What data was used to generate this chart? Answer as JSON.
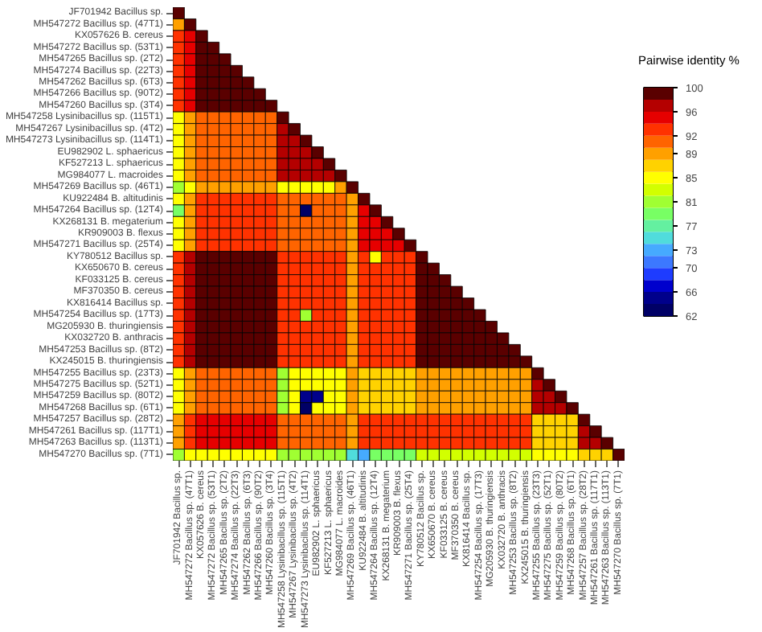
{
  "chart_data": {
    "type": "heatmap",
    "clabel": "Pairwise identity %",
    "categories": [
      "JF701942 Bacillus sp.",
      "MH547272 Bacillus sp. (47T1)",
      "KX057626 B. cereus",
      "MH547272 Bacillus sp. (53T1)",
      "MH547265 Bacillus sp. (2T2)",
      "MH547274 Bacillus sp. (22T3)",
      "MH547262 Bacillus sp. (6T3)",
      "MH547266 Bacillus sp. (90T2)",
      "MH547260 Bacillus sp. (3T4)",
      "MH547258 Lysinibacillus sp. (115T1)",
      "MH547267 Lysinibacillus sp. (4T2)",
      "MH547273 Lysinibacillus sp. (114T1)",
      "EU982902 L. sphaericus",
      "KF527213 L. sphaericus",
      "MG984077 L. macroides",
      "MH547269 Bacillus sp. (46T1)",
      "KU922484 B. altitudinis",
      "MH547264 Bacillus sp. (12T4)",
      "KX268131 B. megaterium",
      "KR909003 B. flexus",
      "MH547271 Bacillus sp. (25T4)",
      "KY780512 Bacillus sp.",
      "KX650670 B. cereus",
      "KF033125 B. cereus",
      "MF370350 B. cereus",
      "KX816414 Bacillus sp.",
      "MH547254 Bacillus sp. (17T3)",
      "MG205930 B. thuringiensis",
      "KX032720 B. anthracis",
      "MH547253 Bacillus sp. (8T2)",
      "KX245015 B. thuringiensis",
      "MH547255 Bacillus sp. (23T3)",
      "MH547275 Bacillus sp. (52T1)",
      "MH547259 Bacillus sp. (80T2)",
      "MH547268 Bacillus sp. (6T1)",
      "MH547257 Bacillus sp. (28T2)",
      "MH547261 Bacillus sp. (117T1)",
      "MH547263 Bacillus sp. (113T1)",
      "MH547270 Bacillus sp. (7T1)"
    ],
    "y_categories": [
      "JF701942 Bacillus sp.",
      "MH547272 Bacillus sp. (47T1)",
      "KX057626 B. cereus",
      "MH547272 Bacillus sp. (53T1)",
      "MH547265 Bacillus sp. (2T2)",
      "MH547274 Bacillus sp. (22T3)",
      "MH547262 Bacillus sp. (6T3)",
      "MH547266 Bacillus sp. (90T2)",
      "MH547260 Bacillus sp. (3T4)",
      "MH547258 Lysinibacillus sp. (115T1)",
      "MH547267 Lysinibacillus sp. (4T2)",
      "MH547273 Lysinibacillus sp. (114T1)",
      "EU982902 L. sphaericus",
      "KF527213 L. sphaericus",
      "MG984077 L. macroides",
      "MH547269 Bacillus sp. (46T1)",
      "KU922484 B. altitudinis",
      "MH547264 Bacillus sp. (12T4)",
      "KX268131 B. megaterium",
      "KR909003 B. flexus",
      "MH547271 Bacillus sp. (25T4)",
      "KY780512 Bacillus sp.",
      "KX650670 B. cereus",
      "KF033125 B. cereus",
      "MF370350 B. cereus",
      "KX816414 Bacillus sp.",
      "MH547254 Bacillus sp. (17T3)",
      "MG205930 B. thuringiensis",
      "KX032720 B. anthracis",
      "MH547253 Bacillus sp. (8T2)",
      "KX245015 B. thuringiensis",
      "MH547255 Bacillus sp. (23T3)",
      "MH547275 Bacillus sp. (52T1)",
      "MH547259 Bacillus sp. (80T2)",
      "MH547268 Bacillus sp. (6T1)",
      "MH547257 Bacillus sp. (28T2)",
      "MH547261 Bacillus sp. (117T1)",
      "MH547263 Bacillus sp. (113T1)",
      "MH547270 Bacillus sp. (7T1)"
    ],
    "clim": [
      62,
      100
    ],
    "cticks": [
      62,
      66,
      70,
      73,
      77,
      81,
      85,
      89,
      92,
      96,
      100
    ],
    "colors": [
      "#000066",
      "#00008b",
      "#0000cd",
      "#1e3cff",
      "#3c78ff",
      "#46aaff",
      "#50dcdc",
      "#64f0a0",
      "#78ff64",
      "#a0ff32",
      "#d2ff00",
      "#ffff00",
      "#ffd200",
      "#ffa000",
      "#ff6400",
      "#ff3200",
      "#e60000",
      "#b40000",
      "#5a0000"
    ],
    "cells": [
      [
        100,
        null,
        null,
        null,
        null,
        null,
        null,
        null,
        null,
        null,
        null,
        null,
        null,
        null,
        null,
        null,
        null,
        null,
        null,
        null,
        null,
        null,
        null,
        null,
        null,
        null,
        null,
        null,
        null,
        null,
        null,
        null,
        null,
        null,
        null,
        null,
        null,
        null,
        null
      ],
      [
        89,
        100,
        null,
        null,
        null,
        null,
        null,
        null,
        null,
        null,
        null,
        null,
        null,
        null,
        null,
        null,
        null,
        null,
        null,
        null,
        null,
        null,
        null,
        null,
        null,
        null,
        null,
        null,
        null,
        null,
        null,
        null,
        null,
        null,
        null,
        null,
        null,
        null,
        null
      ],
      [
        92,
        94,
        100,
        null,
        null,
        null,
        null,
        null,
        null,
        null,
        null,
        null,
        null,
        null,
        null,
        null,
        null,
        null,
        null,
        null,
        null,
        null,
        null,
        null,
        null,
        null,
        null,
        null,
        null,
        null,
        null,
        null,
        null,
        null,
        null,
        null,
        null,
        null,
        null
      ],
      [
        92,
        94,
        99,
        100,
        null,
        null,
        null,
        null,
        null,
        null,
        null,
        null,
        null,
        null,
        null,
        null,
        null,
        null,
        null,
        null,
        null,
        null,
        null,
        null,
        null,
        null,
        null,
        null,
        null,
        null,
        null,
        null,
        null,
        null,
        null,
        null,
        null,
        null,
        null
      ],
      [
        92,
        94,
        99,
        99,
        100,
        null,
        null,
        null,
        null,
        null,
        null,
        null,
        null,
        null,
        null,
        null,
        null,
        null,
        null,
        null,
        null,
        null,
        null,
        null,
        null,
        null,
        null,
        null,
        null,
        null,
        null,
        null,
        null,
        null,
        null,
        null,
        null,
        null,
        null
      ],
      [
        92,
        94,
        99,
        99,
        99,
        100,
        null,
        null,
        null,
        null,
        null,
        null,
        null,
        null,
        null,
        null,
        null,
        null,
        null,
        null,
        null,
        null,
        null,
        null,
        null,
        null,
        null,
        null,
        null,
        null,
        null,
        null,
        null,
        null,
        null,
        null,
        null,
        null,
        null
      ],
      [
        92,
        94,
        99,
        99,
        99,
        99,
        100,
        null,
        null,
        null,
        null,
        null,
        null,
        null,
        null,
        null,
        null,
        null,
        null,
        null,
        null,
        null,
        null,
        null,
        null,
        null,
        null,
        null,
        null,
        null,
        null,
        null,
        null,
        null,
        null,
        null,
        null,
        null,
        null
      ],
      [
        92,
        94,
        99,
        99,
        99,
        99,
        99,
        100,
        null,
        null,
        null,
        null,
        null,
        null,
        null,
        null,
        null,
        null,
        null,
        null,
        null,
        null,
        null,
        null,
        null,
        null,
        null,
        null,
        null,
        null,
        null,
        null,
        null,
        null,
        null,
        null,
        null,
        null,
        null
      ],
      [
        92,
        94,
        99,
        99,
        99,
        99,
        99,
        99,
        100,
        null,
        null,
        null,
        null,
        null,
        null,
        null,
        null,
        null,
        null,
        null,
        null,
        null,
        null,
        null,
        null,
        null,
        null,
        null,
        null,
        null,
        null,
        null,
        null,
        null,
        null,
        null,
        null,
        null,
        null
      ],
      [
        85,
        89,
        91,
        91,
        91,
        91,
        91,
        91,
        91,
        100,
        null,
        null,
        null,
        null,
        null,
        null,
        null,
        null,
        null,
        null,
        null,
        null,
        null,
        null,
        null,
        null,
        null,
        null,
        null,
        null,
        null,
        null,
        null,
        null,
        null,
        null,
        null,
        null,
        null
      ],
      [
        85,
        89,
        91,
        91,
        91,
        91,
        91,
        91,
        91,
        97,
        100,
        null,
        null,
        null,
        null,
        null,
        null,
        null,
        null,
        null,
        null,
        null,
        null,
        null,
        null,
        null,
        null,
        null,
        null,
        null,
        null,
        null,
        null,
        null,
        null,
        null,
        null,
        null,
        null
      ],
      [
        85,
        89,
        91,
        91,
        91,
        91,
        91,
        91,
        91,
        97,
        97,
        100,
        null,
        null,
        null,
        null,
        null,
        null,
        null,
        null,
        null,
        null,
        null,
        null,
        null,
        null,
        null,
        null,
        null,
        null,
        null,
        null,
        null,
        null,
        null,
        null,
        null,
        null,
        null
      ],
      [
        85,
        89,
        91,
        91,
        91,
        91,
        91,
        91,
        91,
        97,
        97,
        97,
        100,
        null,
        null,
        null,
        null,
        null,
        null,
        null,
        null,
        null,
        null,
        null,
        null,
        null,
        null,
        null,
        null,
        null,
        null,
        null,
        null,
        null,
        null,
        null,
        null,
        null,
        null
      ],
      [
        85,
        89,
        91,
        91,
        91,
        91,
        91,
        91,
        91,
        97,
        97,
        97,
        97,
        100,
        null,
        null,
        null,
        null,
        null,
        null,
        null,
        null,
        null,
        null,
        null,
        null,
        null,
        null,
        null,
        null,
        null,
        null,
        null,
        null,
        null,
        null,
        null,
        null,
        null
      ],
      [
        85,
        89,
        91,
        91,
        91,
        91,
        91,
        91,
        91,
        97,
        97,
        97,
        97,
        97,
        100,
        null,
        null,
        null,
        null,
        null,
        null,
        null,
        null,
        null,
        null,
        null,
        null,
        null,
        null,
        null,
        null,
        null,
        null,
        null,
        null,
        null,
        null,
        null,
        null
      ],
      [
        81,
        85,
        89,
        89,
        89,
        89,
        89,
        89,
        89,
        85,
        85,
        85,
        85,
        85,
        89,
        100,
        null,
        null,
        null,
        null,
        null,
        null,
        null,
        null,
        null,
        null,
        null,
        null,
        null,
        null,
        null,
        null,
        null,
        null,
        null,
        null,
        null,
        null,
        null
      ],
      [
        84,
        89,
        92,
        92,
        92,
        92,
        92,
        92,
        92,
        90,
        90,
        90,
        90,
        90,
        90,
        89,
        100,
        null,
        null,
        null,
        null,
        null,
        null,
        null,
        null,
        null,
        null,
        null,
        null,
        null,
        null,
        null,
        null,
        null,
        null,
        null,
        null,
        null,
        null
      ],
      [
        79,
        89,
        92,
        92,
        92,
        92,
        92,
        92,
        92,
        90,
        90,
        62,
        90,
        90,
        90,
        89,
        95,
        100,
        null,
        null,
        null,
        null,
        null,
        null,
        null,
        null,
        null,
        null,
        null,
        null,
        null,
        null,
        null,
        null,
        null,
        null,
        null,
        null,
        null
      ],
      [
        84,
        89,
        92,
        92,
        92,
        92,
        92,
        92,
        92,
        90,
        90,
        90,
        90,
        90,
        90,
        89,
        95,
        95,
        100,
        null,
        null,
        null,
        null,
        null,
        null,
        null,
        null,
        null,
        null,
        null,
        null,
        null,
        null,
        null,
        null,
        null,
        null,
        null,
        null
      ],
      [
        84,
        89,
        92,
        92,
        92,
        92,
        92,
        92,
        92,
        90,
        90,
        90,
        90,
        90,
        90,
        89,
        95,
        95,
        95,
        100,
        null,
        null,
        null,
        null,
        null,
        null,
        null,
        null,
        null,
        null,
        null,
        null,
        null,
        null,
        null,
        null,
        null,
        null,
        null
      ],
      [
        84,
        89,
        92,
        92,
        92,
        92,
        92,
        92,
        92,
        90,
        90,
        90,
        90,
        90,
        90,
        89,
        95,
        95,
        95,
        95,
        100,
        null,
        null,
        null,
        null,
        null,
        null,
        null,
        null,
        null,
        null,
        null,
        null,
        null,
        null,
        null,
        null,
        null,
        null
      ],
      [
        92,
        96,
        98,
        98,
        98,
        98,
        98,
        98,
        98,
        92,
        92,
        92,
        92,
        92,
        92,
        89,
        92,
        85,
        92,
        92,
        92,
        100,
        null,
        null,
        null,
        null,
        null,
        null,
        null,
        null,
        null,
        null,
        null,
        null,
        null,
        null,
        null,
        null,
        null
      ],
      [
        92,
        96,
        98,
        98,
        98,
        98,
        98,
        98,
        98,
        92,
        92,
        92,
        92,
        92,
        92,
        89,
        92,
        92,
        92,
        92,
        92,
        99,
        100,
        null,
        null,
        null,
        null,
        null,
        null,
        null,
        null,
        null,
        null,
        null,
        null,
        null,
        null,
        null,
        null
      ],
      [
        92,
        96,
        98,
        98,
        98,
        98,
        98,
        98,
        98,
        92,
        92,
        92,
        92,
        92,
        92,
        89,
        92,
        92,
        92,
        92,
        92,
        99,
        99,
        100,
        null,
        null,
        null,
        null,
        null,
        null,
        null,
        null,
        null,
        null,
        null,
        null,
        null,
        null,
        null
      ],
      [
        92,
        96,
        98,
        98,
        98,
        98,
        98,
        98,
        98,
        92,
        92,
        92,
        92,
        92,
        92,
        89,
        92,
        92,
        92,
        92,
        92,
        99,
        99,
        99,
        100,
        null,
        null,
        null,
        null,
        null,
        null,
        null,
        null,
        null,
        null,
        null,
        null,
        null,
        null
      ],
      [
        92,
        96,
        98,
        98,
        98,
        98,
        98,
        98,
        98,
        92,
        92,
        92,
        92,
        92,
        92,
        89,
        92,
        92,
        92,
        92,
        92,
        99,
        99,
        99,
        99,
        100,
        null,
        null,
        null,
        null,
        null,
        null,
        null,
        null,
        null,
        null,
        null,
        null,
        null
      ],
      [
        92,
        96,
        98,
        98,
        98,
        98,
        98,
        98,
        98,
        92,
        92,
        81,
        92,
        92,
        92,
        89,
        92,
        92,
        92,
        92,
        92,
        99,
        99,
        99,
        99,
        99,
        100,
        null,
        null,
        null,
        null,
        null,
        null,
        null,
        null,
        null,
        null,
        null,
        null
      ],
      [
        92,
        96,
        98,
        98,
        98,
        98,
        98,
        98,
        98,
        92,
        92,
        92,
        92,
        92,
        92,
        89,
        92,
        92,
        92,
        92,
        92,
        99,
        99,
        99,
        99,
        99,
        99,
        100,
        null,
        null,
        null,
        null,
        null,
        null,
        null,
        null,
        null,
        null,
        null
      ],
      [
        92,
        96,
        98,
        98,
        98,
        98,
        98,
        98,
        98,
        92,
        92,
        92,
        92,
        92,
        92,
        89,
        92,
        92,
        92,
        92,
        92,
        99,
        99,
        99,
        99,
        99,
        99,
        99,
        100,
        null,
        null,
        null,
        null,
        null,
        null,
        null,
        null,
        null,
        null
      ],
      [
        92,
        96,
        98,
        98,
        98,
        98,
        98,
        98,
        98,
        92,
        92,
        92,
        92,
        92,
        92,
        89,
        92,
        92,
        92,
        92,
        92,
        99,
        99,
        99,
        99,
        99,
        99,
        99,
        99,
        100,
        null,
        null,
        null,
        null,
        null,
        null,
        null,
        null,
        null
      ],
      [
        92,
        96,
        98,
        98,
        98,
        98,
        98,
        98,
        98,
        92,
        92,
        92,
        92,
        92,
        92,
        89,
        92,
        92,
        92,
        92,
        92,
        99,
        99,
        99,
        99,
        99,
        99,
        99,
        99,
        99,
        100,
        null,
        null,
        null,
        null,
        null,
        null,
        null,
        null
      ],
      [
        85,
        89,
        90,
        90,
        90,
        90,
        90,
        90,
        90,
        81,
        85,
        85,
        85,
        85,
        85,
        89,
        87,
        87,
        87,
        87,
        87,
        89,
        89,
        89,
        89,
        89,
        89,
        89,
        89,
        89,
        89,
        100,
        null,
        null,
        null,
        null,
        null,
        null,
        null
      ],
      [
        85,
        89,
        90,
        90,
        90,
        90,
        90,
        90,
        90,
        81,
        85,
        85,
        85,
        85,
        85,
        89,
        87,
        87,
        87,
        87,
        87,
        89,
        89,
        89,
        89,
        89,
        89,
        89,
        89,
        89,
        89,
        96,
        100,
        null,
        null,
        null,
        null,
        null,
        null
      ],
      [
        85,
        89,
        90,
        90,
        90,
        90,
        90,
        90,
        90,
        81,
        85,
        64,
        64,
        85,
        85,
        89,
        87,
        87,
        87,
        87,
        87,
        89,
        89,
        89,
        89,
        89,
        89,
        89,
        89,
        89,
        89,
        96,
        96,
        100,
        null,
        null,
        null,
        null,
        null
      ],
      [
        85,
        89,
        90,
        90,
        90,
        90,
        90,
        90,
        90,
        81,
        85,
        62,
        85,
        85,
        85,
        89,
        87,
        87,
        87,
        87,
        87,
        89,
        89,
        89,
        89,
        89,
        89,
        89,
        89,
        89,
        89,
        96,
        96,
        96,
        100,
        null,
        null,
        null,
        null
      ],
      [
        89,
        92,
        95,
        95,
        95,
        95,
        95,
        95,
        95,
        91,
        91,
        91,
        91,
        91,
        91,
        89,
        92,
        92,
        92,
        92,
        92,
        92,
        92,
        92,
        92,
        92,
        92,
        92,
        92,
        92,
        92,
        87,
        87,
        87,
        87,
        100,
        null,
        null,
        null
      ],
      [
        89,
        92,
        95,
        95,
        95,
        95,
        95,
        95,
        95,
        91,
        91,
        91,
        91,
        91,
        91,
        89,
        92,
        92,
        92,
        92,
        92,
        92,
        92,
        92,
        92,
        92,
        92,
        92,
        92,
        92,
        92,
        87,
        87,
        87,
        87,
        97,
        100,
        null,
        null
      ],
      [
        89,
        92,
        95,
        95,
        95,
        95,
        95,
        95,
        95,
        91,
        91,
        91,
        91,
        91,
        91,
        89,
        92,
        92,
        92,
        92,
        92,
        92,
        92,
        92,
        92,
        92,
        92,
        92,
        92,
        92,
        92,
        87,
        87,
        87,
        87,
        97,
        97,
        100,
        null
      ],
      [
        81,
        85,
        84,
        84,
        84,
        84,
        84,
        84,
        84,
        80,
        80,
        80,
        80,
        80,
        80,
        74,
        73,
        79,
        79,
        79,
        79,
        83,
        83,
        83,
        83,
        83,
        83,
        83,
        83,
        83,
        83,
        85,
        85,
        85,
        85,
        88,
        88,
        88,
        100
      ]
    ]
  }
}
